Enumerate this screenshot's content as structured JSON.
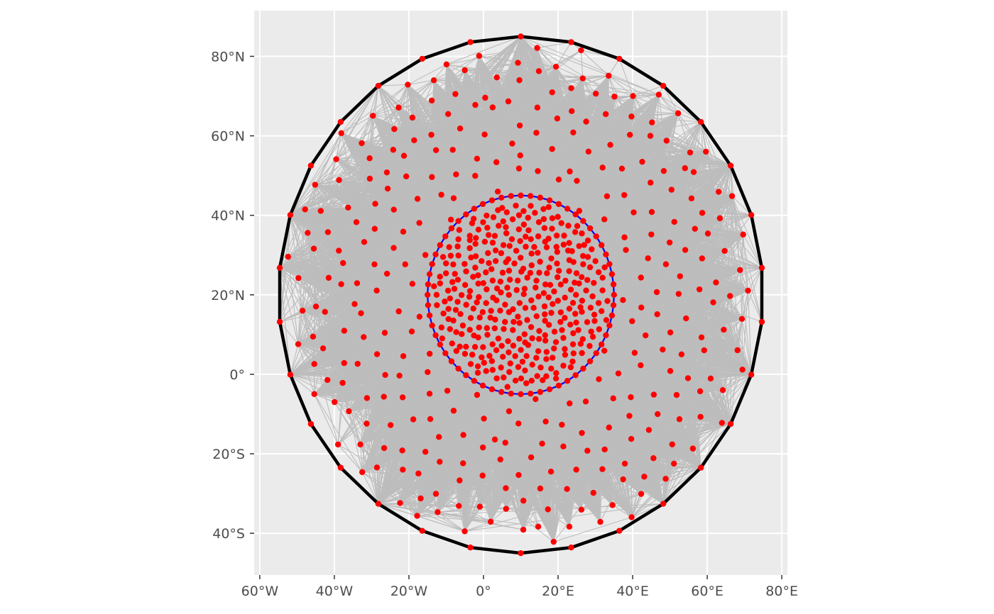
{
  "chart_data": {
    "type": "map",
    "title": "",
    "xlabel": "",
    "ylabel": "",
    "xlim": [
      -61.5,
      81.5
    ],
    "ylim": [
      -50.5,
      91.5
    ],
    "grid": true,
    "x_ticks": [
      {
        "value": -60,
        "label": "60°W"
      },
      {
        "value": -40,
        "label": "40°W"
      },
      {
        "value": -20,
        "label": "20°W"
      },
      {
        "value": 0,
        "label": "0°"
      },
      {
        "value": 20,
        "label": "20°E"
      },
      {
        "value": 40,
        "label": "40°E"
      },
      {
        "value": 60,
        "label": "60°E"
      },
      {
        "value": 80,
        "label": "80°E"
      }
    ],
    "y_ticks": [
      {
        "value": 80,
        "label": "80°N"
      },
      {
        "value": 60,
        "label": "60°N"
      },
      {
        "value": 40,
        "label": "40°N"
      },
      {
        "value": 20,
        "label": "20°N"
      },
      {
        "value": 0,
        "label": "0°"
      },
      {
        "value": -20,
        "label": "20°S"
      },
      {
        "value": -40,
        "label": "40°S"
      }
    ],
    "outer_boundary": {
      "center_lon": 10,
      "center_lat": 20,
      "radius_deg": 65,
      "vertices": 30,
      "color": "#000000"
    },
    "inner_boundary": {
      "center_lon": 10,
      "center_lat": 20,
      "radius_deg": 25,
      "vertices": 60,
      "color": "#0000ff"
    },
    "mesh_points": {
      "outer_region_count": 300,
      "inner_region_count": 340,
      "color": "#ff0000"
    },
    "mesh_edge_color": "#bdbdbd",
    "panel_background": "#ebebeb",
    "grid_color": "#ffffff"
  }
}
